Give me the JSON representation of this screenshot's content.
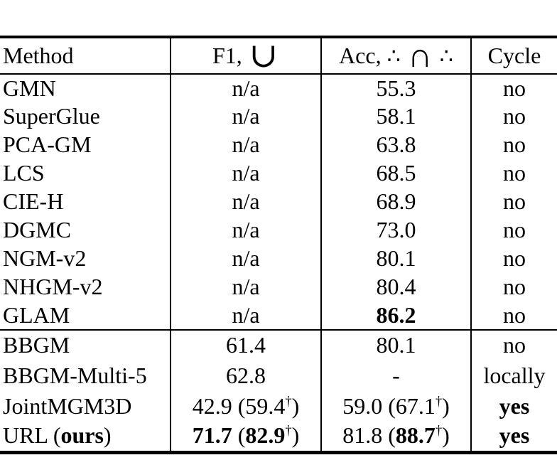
{
  "colors": {
    "text": "#000000",
    "rule": "#000000",
    "background": "#ffffff"
  },
  "table": {
    "header": {
      "method": "Method",
      "f1": {
        "prefix": "F1,",
        "symbol": "∪"
      },
      "acc": {
        "prefix": "Acc,",
        "left_dots": "∴",
        "symbol": "∩",
        "right_dots": "∴"
      },
      "cycle": "Cycle"
    },
    "sections": [
      {
        "rows": [
          {
            "method": [
              {
                "t": "GMN"
              }
            ],
            "f1": [
              {
                "t": "n/a"
              }
            ],
            "acc": [
              {
                "t": "55.3"
              }
            ],
            "cycle": [
              {
                "t": "no"
              }
            ]
          },
          {
            "method": [
              {
                "t": "SuperGlue"
              }
            ],
            "f1": [
              {
                "t": "n/a"
              }
            ],
            "acc": [
              {
                "t": "58.1"
              }
            ],
            "cycle": [
              {
                "t": "no"
              }
            ]
          },
          {
            "method": [
              {
                "t": "PCA-GM"
              }
            ],
            "f1": [
              {
                "t": "n/a"
              }
            ],
            "acc": [
              {
                "t": "63.8"
              }
            ],
            "cycle": [
              {
                "t": "no"
              }
            ]
          },
          {
            "method": [
              {
                "t": "LCS"
              }
            ],
            "f1": [
              {
                "t": "n/a"
              }
            ],
            "acc": [
              {
                "t": "68.5"
              }
            ],
            "cycle": [
              {
                "t": "no"
              }
            ]
          },
          {
            "method": [
              {
                "t": "CIE-H"
              }
            ],
            "f1": [
              {
                "t": "n/a"
              }
            ],
            "acc": [
              {
                "t": "68.9"
              }
            ],
            "cycle": [
              {
                "t": "no"
              }
            ]
          },
          {
            "method": [
              {
                "t": "DGMC"
              }
            ],
            "f1": [
              {
                "t": "n/a"
              }
            ],
            "acc": [
              {
                "t": "73.0"
              }
            ],
            "cycle": [
              {
                "t": "no"
              }
            ]
          },
          {
            "method": [
              {
                "t": "NGM-v2"
              }
            ],
            "f1": [
              {
                "t": "n/a"
              }
            ],
            "acc": [
              {
                "t": "80.1"
              }
            ],
            "cycle": [
              {
                "t": "no"
              }
            ]
          },
          {
            "method": [
              {
                "t": "NHGM-v2"
              }
            ],
            "f1": [
              {
                "t": "n/a"
              }
            ],
            "acc": [
              {
                "t": "80.4"
              }
            ],
            "cycle": [
              {
                "t": "no"
              }
            ]
          },
          {
            "method": [
              {
                "t": "GLAM"
              }
            ],
            "f1": [
              {
                "t": "n/a"
              }
            ],
            "acc": [
              {
                "t": "86.2",
                "b": true
              }
            ],
            "cycle": [
              {
                "t": "no"
              }
            ]
          }
        ]
      },
      {
        "rows": [
          {
            "method": [
              {
                "t": "BBGM"
              }
            ],
            "f1": [
              {
                "t": "61.4"
              }
            ],
            "acc": [
              {
                "t": "80.1"
              }
            ],
            "cycle": [
              {
                "t": "no"
              }
            ]
          },
          {
            "method": [
              {
                "t": "BBGM-Multi-5"
              }
            ],
            "f1": [
              {
                "t": "62.8"
              }
            ],
            "acc": [
              {
                "t": "-"
              }
            ],
            "cycle": [
              {
                "t": "locally"
              }
            ]
          },
          {
            "method": [
              {
                "t": "JointMGM3D"
              }
            ],
            "f1": [
              {
                "t": "42.9 (59.4"
              },
              {
                "t": "†",
                "s": true
              },
              {
                "t": ")"
              }
            ],
            "acc": [
              {
                "t": "59.0 (67.1"
              },
              {
                "t": "†",
                "s": true
              },
              {
                "t": ")"
              }
            ],
            "cycle": [
              {
                "t": "yes",
                "b": true
              }
            ]
          },
          {
            "method": [
              {
                "t": "URL ("
              },
              {
                "t": "ours",
                "b": true
              },
              {
                "t": ")"
              }
            ],
            "f1": [
              {
                "t": "71.7",
                "b": true
              },
              {
                "t": " ("
              },
              {
                "t": "82.9",
                "b": true
              },
              {
                "t": "†",
                "s": true
              },
              {
                "t": ")"
              }
            ],
            "acc": [
              {
                "t": "81.8 ("
              },
              {
                "t": "88.7",
                "b": true
              },
              {
                "t": "†",
                "s": true
              },
              {
                "t": ")"
              }
            ],
            "cycle": [
              {
                "t": "yes",
                "b": true
              }
            ]
          }
        ]
      }
    ]
  }
}
